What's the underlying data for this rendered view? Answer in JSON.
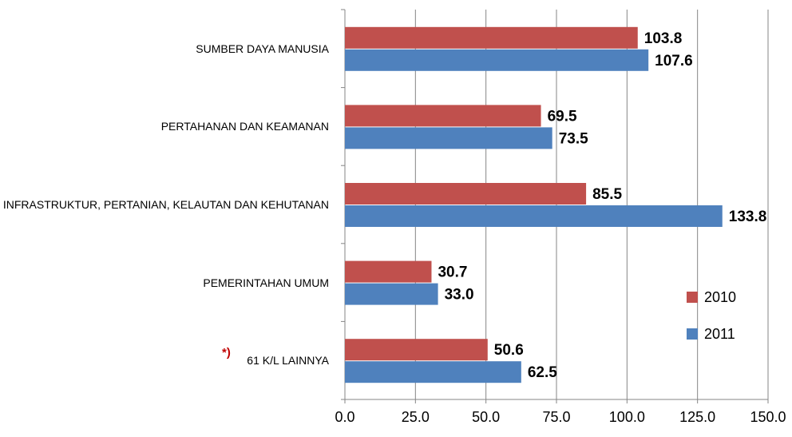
{
  "chart_data": {
    "type": "barh",
    "categories": [
      "SUMBER DAYA MANUSIA",
      "PERTAHANAN DAN KEAMANAN",
      "INFRASTRUKTUR, PERTANIAN, KELAUTAN DAN KEHUTANAN",
      "PEMERINTAHAN UMUM",
      "61 K/L LAINNYA"
    ],
    "annotations": [
      {
        "text": "*)",
        "category": 4,
        "color": "#c00000"
      }
    ],
    "series": [
      {
        "name": "2010",
        "color": "#c0504d",
        "values": [
          103.8,
          69.5,
          85.5,
          30.7,
          50.6
        ],
        "value_labels": [
          "103.8",
          "69.5",
          "85.5",
          "30.7",
          "50.6"
        ]
      },
      {
        "name": "2011",
        "color": "#4f81bd",
        "values": [
          107.6,
          73.5,
          133.8,
          33.0,
          62.5
        ],
        "value_labels": [
          "107.6",
          "73.5",
          "133.8",
          "33.0",
          "62.5"
        ]
      }
    ],
    "xlim": [
      0,
      150
    ],
    "xticks": [
      {
        "value": 0,
        "label": "0.0"
      },
      {
        "value": 25,
        "label": "25.0"
      },
      {
        "value": 50,
        "label": "50.0"
      },
      {
        "value": 75,
        "label": "75.0"
      },
      {
        "value": 100,
        "label": "100.0"
      },
      {
        "value": 125,
        "label": "125.0"
      },
      {
        "value": 150,
        "label": "150.0"
      }
    ],
    "grid": true,
    "legend": "right"
  }
}
